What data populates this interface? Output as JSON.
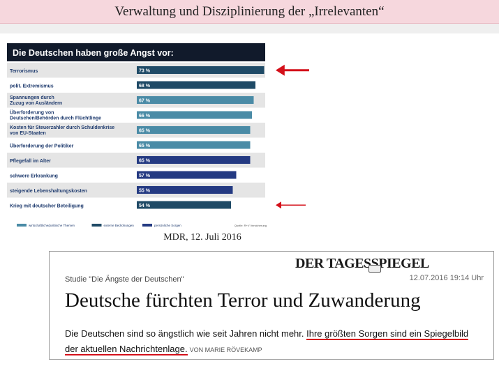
{
  "slide": {
    "title": "Verwaltung und Disziplinierung der „Irrelevanten“",
    "chart_source": "MDR, 12. Juli 2016"
  },
  "chart_data": {
    "type": "bar",
    "orientation": "horizontal",
    "title": "Die Deutschen haben große Angst vor:",
    "categories": [
      "Terrorismus",
      "polit. Extremismus",
      "Spannungen durch\nZuzug von Ausländern",
      "Überforderung von\nDeutschen/Behörden durch Flüchtlinge",
      "Kosten für Steuerzahler durch Schuldenkrise\nvon EU-Staaten",
      "Überforderung der Politiker",
      "Pflegefall im Alter",
      "schwere Erkrankung",
      "steigende Lebenshaltungskosten",
      "Krieg mit deutscher Beteiligung"
    ],
    "values": [
      73,
      68,
      67,
      66,
      65,
      65,
      65,
      57,
      55,
      54
    ],
    "value_labels": [
      "73 %",
      "68 %",
      "67 %",
      "66 %",
      "65 %",
      "65 %",
      "65 %",
      "57 %",
      "55 %",
      "54 %"
    ],
    "groups": [
      "extern",
      "extern",
      "wirtschaft",
      "wirtschaft",
      "wirtschaft",
      "wirtschaft",
      "persoenlich",
      "persoenlich",
      "persoenlich",
      "extern"
    ],
    "legend": [
      {
        "key": "wirtschaft",
        "label": "wirtschaftliche/politische Themen",
        "color": "#4a8ba6"
      },
      {
        "key": "extern",
        "label": "externe Bedrohungen",
        "color": "#1f4a66"
      },
      {
        "key": "persoenlich",
        "label": "persönliche Sorgen",
        "color": "#243a82"
      }
    ],
    "legend_position": "bottom",
    "credit": "Quelle: R+V Versicherung",
    "xlim": [
      0,
      100
    ],
    "annotation_arrows_at": [
      "Terrorismus",
      "Krieg mit deutscher Beteiligung"
    ],
    "colors": {
      "header_bg": "#111a2b",
      "row_alt": "#e5e5e5",
      "arrow": "#d4101a"
    }
  },
  "article": {
    "logo": "DER TAGESSPIEGEL",
    "kicker": "Studie \"Die Ängste der Deutschen\"",
    "date": "12.07.2016 19:14 Uhr",
    "headline": "Deutsche fürchten Terror und Zuwanderung",
    "lead_plain": "Die Deutschen sind so ängstlich wie seit Jahren nicht mehr.",
    "lead_highlight_1": "Ihre größten Sorgen sind ein Spiegelbild",
    "lead_highlight_2": "der aktuellen Nachrichtenlage.",
    "author": "VON MARIE RÖVEKAMP"
  }
}
